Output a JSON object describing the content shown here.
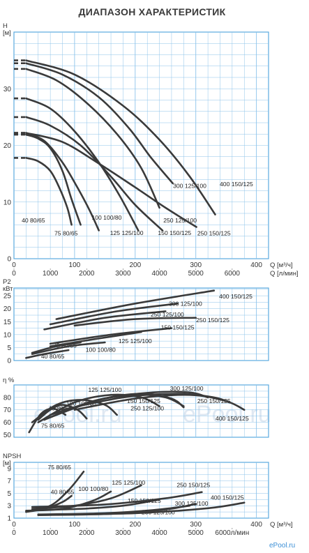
{
  "title": "ДИАПАЗОН ХАРАКТЕРИСТИК",
  "watermark": {
    "big": "ePool.ru",
    "corner": "ePool.ru"
  },
  "colors": {
    "grid": "#8cc3ea",
    "frame": "#5aa9de",
    "curve": "#3a3a3a",
    "watermark": "#dfe8f2",
    "corner_watermark": "#3b8fd6"
  },
  "axes": {
    "q_m3h": {
      "label": "Q [м³/ч]",
      "ticks": [
        "0",
        "100",
        "200",
        "300",
        "400"
      ],
      "range": [
        0,
        420
      ]
    },
    "q_lmin": {
      "label": "Q [л/мин]",
      "ticks": [
        "0",
        "1000",
        "2000",
        "3000",
        "4000",
        "5000",
        "6000"
      ]
    },
    "npsh_lmin_label": "6000л/мин"
  },
  "chart_data": [
    {
      "type": "line",
      "name": "head",
      "ylabel": "H [м]",
      "ylabel_top": "H",
      "ylabel_unit": "[м]",
      "yticks": [
        "0",
        "10",
        "20",
        "30"
      ],
      "ylim": [
        0,
        40
      ],
      "xlim": [
        0,
        420
      ],
      "grid": true,
      "series": [
        {
          "name": "40 80/65",
          "label": "40 80/65",
          "points": [
            [
              20,
              17.8
            ],
            [
              40,
              17.2
            ],
            [
              60,
              15.5
            ],
            [
              75,
              12.5
            ],
            [
              88,
              9.0
            ],
            [
              95,
              6.0
            ]
          ],
          "label_at": [
            32,
            6.4
          ]
        },
        {
          "name": "75 80/65",
          "label": "75 80/65",
          "points": [
            [
              20,
              21.9
            ],
            [
              40,
              21.2
            ],
            [
              60,
              19.5
            ],
            [
              80,
              15.5
            ],
            [
              95,
              10.5
            ],
            [
              110,
              6.0
            ]
          ],
          "label_at": [
            86,
            4.1
          ]
        },
        {
          "name": "100 100/80",
          "label": "100 100/80",
          "points": [
            [
              20,
              22.2
            ],
            [
              50,
              20.8
            ],
            [
              80,
              17.0
            ],
            [
              105,
              12.5
            ],
            [
              125,
              8.5
            ],
            [
              140,
              5.0
            ]
          ],
          "label_at": [
            153,
            6.9
          ]
        },
        {
          "name": "125 125/100",
          "label": "125 125/100",
          "points": [
            [
              20,
              28.3
            ],
            [
              60,
              26.5
            ],
            [
              100,
              22.5
            ],
            [
              140,
              17.0
            ],
            [
              175,
              11.0
            ],
            [
              205,
              5.0
            ]
          ],
          "label_at": [
            186,
            4.2
          ]
        },
        {
          "name": "150 150/125",
          "label": "150 150/125",
          "points": [
            [
              20,
              25.0
            ],
            [
              60,
              23.5
            ],
            [
              110,
              20.0
            ],
            [
              160,
              14.5
            ],
            [
              200,
              9.5
            ],
            [
              245,
              5.0
            ]
          ],
          "label_at": [
            265,
            4.2
          ]
        },
        {
          "name": "250 125/100",
          "label": "250 125/100",
          "points": [
            [
              20,
              33.5
            ],
            [
              70,
              31.5
            ],
            [
              120,
              27.5
            ],
            [
              170,
              22.0
            ],
            [
              210,
              16.0
            ],
            [
              240,
              9.0
            ]
          ],
          "label_at": [
            274,
            6.4
          ]
        },
        {
          "name": "300 125/100",
          "label": "300 125/100",
          "points": [
            [
              20,
              34.5
            ],
            [
              80,
              32.5
            ],
            [
              140,
              28.5
            ],
            [
              190,
              23.0
            ],
            [
              225,
              18.0
            ],
            [
              262,
              13.3
            ]
          ],
          "label_at": [
            290,
            12.5
          ]
        },
        {
          "name": "250 150/125",
          "label": "250 150/125",
          "points": [
            [
              20,
              22.2
            ],
            [
              80,
              20.6
            ],
            [
              140,
              16.8
            ],
            [
              200,
              12.6
            ],
            [
              250,
              9.0
            ],
            [
              301,
              5.6
            ]
          ],
          "label_at": [
            330,
            4.1
          ]
        },
        {
          "name": "400 150/125",
          "label": "400 150/125",
          "points": [
            [
              20,
              35.0
            ],
            [
              100,
              32.5
            ],
            [
              180,
              27.0
            ],
            [
              240,
              21.0
            ],
            [
              290,
              14.5
            ],
            [
              332,
              7.8
            ]
          ],
          "label_at": [
            367,
            12.8
          ]
        }
      ]
    },
    {
      "type": "line",
      "name": "power",
      "ylabel": "P2 кВт",
      "ylabel_top": "P2",
      "ylabel_unit": "кВт",
      "yticks": [
        "0",
        "5",
        "10",
        "15",
        "20",
        "25"
      ],
      "ylim": [
        0,
        28
      ],
      "xlim": [
        0,
        420
      ],
      "grid": true,
      "series": [
        {
          "name": "40 80/65",
          "label": "40 80/65",
          "points": [
            [
              20,
              1.0
            ],
            [
              50,
              2.5
            ],
            [
              90,
              4.0
            ]
          ],
          "label_at": [
            64,
            0.8
          ]
        },
        {
          "name": "75 80/65",
          "label": "75 80/65",
          "points": [
            [
              30,
              3.0
            ],
            [
              70,
              5.5
            ],
            [
              110,
              7.0
            ]
          ],
          "label_at": [
            84,
            5.0
          ]
        },
        {
          "name": "100 100/80",
          "label": "100 100/80",
          "points": [
            [
              30,
              2.5
            ],
            [
              90,
              5.5
            ],
            [
              150,
              7.0
            ]
          ],
          "label_at": [
            143,
            3.3
          ]
        },
        {
          "name": "125 125/100",
          "label": "125 125/100",
          "points": [
            [
              60,
              5.5
            ],
            [
              140,
              8.5
            ],
            [
              210,
              11.0
            ]
          ],
          "label_at": [
            200,
            6.7
          ]
        },
        {
          "name": "150 150/125",
          "label": "150 150/125",
          "points": [
            [
              60,
              6.5
            ],
            [
              160,
              10.0
            ],
            [
              260,
              12.5
            ]
          ],
          "label_at": [
            270,
            12.0
          ]
        },
        {
          "name": "250 125/100",
          "label": "250 125/100",
          "points": [
            [
              50,
              12.0
            ],
            [
              150,
              16.5
            ],
            [
              250,
              19.0
            ]
          ],
          "label_at": [
            253,
            17.0
          ]
        },
        {
          "name": "300 125/100",
          "label": "300 125/100",
          "points": [
            [
              60,
              14.0
            ],
            [
              170,
              19.0
            ],
            [
              270,
              22.0
            ]
          ],
          "label_at": [
            283,
            21.2
          ]
        },
        {
          "name": "250 150/125",
          "label": "250 150/125",
          "points": [
            [
              100,
              13.5
            ],
            [
              200,
              16.0
            ],
            [
              300,
              16.5
            ]
          ],
          "label_at": [
            328,
            14.8
          ]
        },
        {
          "name": "400 150/125",
          "label": "400 150/125",
          "points": [
            [
              70,
              16.0
            ],
            [
              200,
              22.0
            ],
            [
              330,
              27.0
            ]
          ],
          "label_at": [
            366,
            24.0
          ]
        }
      ]
    },
    {
      "type": "line",
      "name": "efficiency",
      "ylabel": "η %",
      "ylabel_top": "η %",
      "ylabel_unit": "",
      "yticks": [
        "50",
        "60",
        "70",
        "80"
      ],
      "ylim": [
        48,
        90
      ],
      "xlim": [
        0,
        420
      ],
      "grid": true,
      "series": [
        {
          "name": "40 80/65",
          "label": "40 80/65",
          "points": [
            [
              25,
              52
            ],
            [
              45,
              67
            ],
            [
              65,
              71
            ],
            [
              85,
              66
            ]
          ],
          "label_at": [
            76,
            69.5
          ]
        },
        {
          "name": "75 80/65",
          "label": "75 80/65",
          "points": [
            [
              40,
              62
            ],
            [
              60,
              70
            ],
            [
              80,
              74
            ],
            [
              105,
              70
            ],
            [
              120,
              63
            ]
          ],
          "label_at": [
            64,
            55.5
          ]
        },
        {
          "name": "100 100/80",
          "label": "100 100/80",
          "points": [
            [
              30,
              60
            ],
            [
              70,
              74
            ],
            [
              110,
              78
            ],
            [
              150,
              74
            ],
            [
              170,
              66
            ]
          ],
          "label_at": [
            111,
            73.5
          ]
        },
        {
          "name": "125 125/100",
          "label": "125 125/100",
          "points": [
            [
              40,
              60
            ],
            [
              100,
              76
            ],
            [
              160,
              82
            ],
            [
              210,
              80
            ],
            [
              240,
              73
            ]
          ],
          "label_at": [
            150,
            84.5
          ]
        },
        {
          "name": "150 150/125",
          "label": "150 150/125",
          "points": [
            [
              60,
              64
            ],
            [
              140,
              78
            ],
            [
              210,
              83
            ],
            [
              260,
              79
            ],
            [
              280,
              72
            ]
          ],
          "label_at": [
            214,
            75.5
          ]
        },
        {
          "name": "250 125/100",
          "label": "250 125/100",
          "points": [
            [
              50,
              62
            ],
            [
              130,
              77
            ],
            [
              200,
              82
            ],
            [
              250,
              80
            ],
            [
              280,
              73
            ]
          ],
          "label_at": [
            220,
            69.5
          ]
        },
        {
          "name": "300 125/100",
          "label": "300 125/100",
          "points": [
            [
              60,
              66
            ],
            [
              150,
              79
            ],
            [
              230,
              84
            ],
            [
              290,
              84
            ],
            [
              320,
              80
            ]
          ],
          "label_at": [
            285,
            85.5
          ]
        },
        {
          "name": "250 150/125",
          "label": "250 150/125",
          "points": [
            [
              80,
              70
            ],
            [
              180,
              80
            ],
            [
              270,
              83
            ],
            [
              330,
              80
            ],
            [
              355,
              76
            ]
          ],
          "label_at": [
            330,
            75.5
          ]
        },
        {
          "name": "400 150/125",
          "label": "400 150/125",
          "points": [
            [
              100,
              70
            ],
            [
              200,
              79
            ],
            [
              290,
              82
            ],
            [
              350,
              77
            ],
            [
              380,
              70
            ]
          ],
          "label_at": [
            360,
            61.5
          ]
        }
      ]
    },
    {
      "type": "line",
      "name": "npsh",
      "ylabel": "NPSH [м]",
      "ylabel_top": "NPSH",
      "ylabel_unit": "[м]",
      "yticks": [
        "1",
        "3",
        "5",
        "7",
        "9"
      ],
      "ylim": [
        1,
        10
      ],
      "xlim": [
        0,
        420
      ],
      "grid": true,
      "series": [
        {
          "name": "75 80/65",
          "label": "75 80/65",
          "points": [
            [
              20,
              2.0
            ],
            [
              60,
              3.0
            ],
            [
              90,
              5.5
            ],
            [
              115,
              8.5
            ]
          ],
          "label_at": [
            75,
            8.9
          ]
        },
        {
          "name": "40 80/65",
          "label": "40 80/65",
          "points": [
            [
              20,
              2.0
            ],
            [
              50,
              2.5
            ],
            [
              80,
              3.6
            ],
            [
              95,
              4.6
            ]
          ],
          "label_at": [
            80,
            4.9
          ]
        },
        {
          "name": "100 100/80",
          "label": "100 100/80",
          "points": [
            [
              20,
              2.2
            ],
            [
              80,
              2.5
            ],
            [
              130,
              3.8
            ],
            [
              160,
              5.3
            ]
          ],
          "label_at": [
            131,
            5.4
          ]
        },
        {
          "name": "125 125/100",
          "label": "125 125/100",
          "points": [
            [
              30,
              2.5
            ],
            [
              100,
              3.0
            ],
            [
              160,
              4.2
            ],
            [
              210,
              6.3
            ]
          ],
          "label_at": [
            189,
            6.4
          ]
        },
        {
          "name": "150 150/125",
          "label": "150 150/125",
          "points": [
            [
              30,
              2.3
            ],
            [
              110,
              2.5
            ],
            [
              180,
              3.0
            ],
            [
              240,
              4.0
            ]
          ],
          "label_at": [
            215,
            3.5
          ]
        },
        {
          "name": "250 125/100",
          "label": "250 125/100",
          "points": [
            [
              40,
              1.6
            ],
            [
              150,
              1.8
            ],
            [
              230,
              2.3
            ],
            [
              290,
              3.0
            ]
          ],
          "label_at": [
            238,
            1.6
          ]
        },
        {
          "name": "300 125/100",
          "label": "300 125/100",
          "points": [
            [
              40,
              1.5
            ],
            [
              160,
              1.7
            ],
            [
              250,
              2.4
            ],
            [
              300,
              3.3
            ]
          ],
          "label_at": [
            293,
            3.0
          ]
        },
        {
          "name": "250 150/125",
          "label": "250 150/125",
          "points": [
            [
              30,
              2.8
            ],
            [
              150,
              3.2
            ],
            [
              250,
              4.2
            ],
            [
              310,
              5.2
            ]
          ],
          "label_at": [
            296,
            6.0
          ]
        },
        {
          "name": "400 150/125",
          "label": "400 150/125",
          "points": [
            [
              40,
              1.5
            ],
            [
              200,
              1.8
            ],
            [
              320,
              2.6
            ],
            [
              380,
              3.5
            ]
          ],
          "label_at": [
            352,
            4.0
          ]
        }
      ]
    }
  ]
}
